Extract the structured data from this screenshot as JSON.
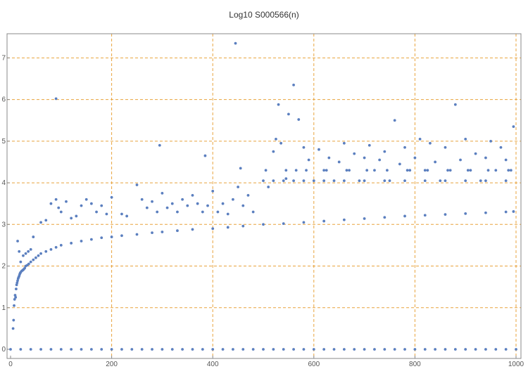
{
  "chart_data": {
    "type": "scatter",
    "title": "Log10 S000566(n)",
    "xlabel": "",
    "ylabel": "",
    "xlim": [
      0,
      1000
    ],
    "ylim": [
      -0.1,
      7.5
    ],
    "x_ticks": [
      0,
      200,
      400,
      600,
      800,
      1000
    ],
    "y_ticks": [
      0,
      1,
      2,
      3,
      4,
      5,
      6,
      7
    ],
    "grid_x": [
      200,
      400,
      600,
      800,
      1000
    ],
    "grid_y": [
      1,
      2,
      3,
      4,
      5,
      6,
      7
    ],
    "grid": true,
    "legend": "none",
    "colors": {
      "points": "#5b7fbf",
      "grid": "#e8a33d",
      "axis": "#888888"
    },
    "series": [
      {
        "values_description_free": true,
        "points": [
          [
            5,
            0.5
          ],
          [
            6,
            0.7
          ],
          [
            7,
            1.05
          ],
          [
            8,
            1.2
          ],
          [
            9,
            1.3
          ],
          [
            10,
            1.25
          ],
          [
            11,
            1.45
          ],
          [
            12,
            1.55
          ],
          [
            13,
            1.6
          ],
          [
            14,
            1.65
          ],
          [
            15,
            1.7
          ],
          [
            16,
            1.73
          ],
          [
            17,
            1.76
          ],
          [
            18,
            1.8
          ],
          [
            19,
            1.83
          ],
          [
            20,
            1.85
          ],
          [
            22,
            1.88
          ],
          [
            24,
            1.9
          ],
          [
            26,
            1.92
          ],
          [
            28,
            1.95
          ],
          [
            30,
            2.0
          ],
          [
            33,
            2.02
          ],
          [
            36,
            2.05
          ],
          [
            40,
            2.1
          ],
          [
            45,
            2.15
          ],
          [
            50,
            2.2
          ],
          [
            55,
            2.25
          ],
          [
            60,
            2.3
          ],
          [
            70,
            2.35
          ],
          [
            80,
            2.4
          ],
          [
            90,
            2.45
          ],
          [
            100,
            2.5
          ],
          [
            120,
            2.55
          ],
          [
            140,
            2.6
          ],
          [
            160,
            2.64
          ],
          [
            180,
            2.68
          ],
          [
            200,
            2.7
          ],
          [
            220,
            2.73
          ],
          [
            250,
            2.76
          ],
          [
            280,
            2.8
          ],
          [
            300,
            2.82
          ],
          [
            330,
            2.85
          ],
          [
            360,
            2.88
          ],
          [
            400,
            2.9
          ],
          [
            430,
            2.93
          ],
          [
            460,
            2.96
          ],
          [
            500,
            3.0
          ],
          [
            540,
            3.02
          ],
          [
            580,
            3.05
          ],
          [
            620,
            3.08
          ],
          [
            660,
            3.11
          ],
          [
            700,
            3.14
          ],
          [
            740,
            3.17
          ],
          [
            780,
            3.2
          ],
          [
            820,
            3.22
          ],
          [
            860,
            3.24
          ],
          [
            900,
            3.26
          ],
          [
            940,
            3.28
          ],
          [
            980,
            3.3
          ],
          [
            995,
            3.31
          ],
          [
            14,
            2.6
          ],
          [
            17,
            2.35
          ],
          [
            20,
            2.1
          ],
          [
            25,
            2.25
          ],
          [
            30,
            2.3
          ],
          [
            35,
            2.35
          ],
          [
            40,
            2.4
          ],
          [
            45,
            2.7
          ],
          [
            60,
            3.05
          ],
          [
            70,
            3.1
          ],
          [
            80,
            3.5
          ],
          [
            90,
            3.6
          ],
          [
            95,
            3.4
          ],
          [
            100,
            3.3
          ],
          [
            110,
            3.55
          ],
          [
            120,
            3.15
          ],
          [
            130,
            3.2
          ],
          [
            140,
            3.45
          ],
          [
            150,
            3.6
          ],
          [
            160,
            3.5
          ],
          [
            170,
            3.3
          ],
          [
            180,
            3.45
          ],
          [
            190,
            3.25
          ],
          [
            200,
            3.65
          ],
          [
            220,
            3.25
          ],
          [
            230,
            3.2
          ],
          [
            250,
            3.95
          ],
          [
            260,
            3.6
          ],
          [
            270,
            3.4
          ],
          [
            280,
            3.55
          ],
          [
            290,
            3.3
          ],
          [
            300,
            3.75
          ],
          [
            310,
            3.4
          ],
          [
            320,
            3.5
          ],
          [
            330,
            3.3
          ],
          [
            340,
            3.6
          ],
          [
            350,
            3.45
          ],
          [
            360,
            3.7
          ],
          [
            370,
            3.5
          ],
          [
            380,
            3.3
          ],
          [
            390,
            3.45
          ],
          [
            400,
            3.8
          ],
          [
            410,
            3.3
          ],
          [
            420,
            3.5
          ],
          [
            430,
            3.25
          ],
          [
            440,
            3.6
          ],
          [
            450,
            3.9
          ],
          [
            460,
            3.45
          ],
          [
            470,
            3.7
          ],
          [
            480,
            3.3
          ],
          [
            90,
            6.02
          ],
          [
            295,
            4.9
          ],
          [
            385,
            4.65
          ],
          [
            445,
            7.35
          ],
          [
            455,
            4.35
          ],
          [
            510,
            3.9
          ],
          [
            520,
            4.75
          ],
          [
            525,
            5.05
          ],
          [
            530,
            5.88
          ],
          [
            535,
            4.95
          ],
          [
            545,
            4.1
          ],
          [
            550,
            5.65
          ],
          [
            560,
            6.35
          ],
          [
            565,
            4.3
          ],
          [
            570,
            5.52
          ],
          [
            580,
            4.85
          ],
          [
            590,
            4.55
          ],
          [
            600,
            4.05
          ],
          [
            610,
            4.8
          ],
          [
            620,
            4.3
          ],
          [
            630,
            4.6
          ],
          [
            640,
            4.05
          ],
          [
            650,
            4.5
          ],
          [
            660,
            4.95
          ],
          [
            670,
            4.3
          ],
          [
            680,
            4.7
          ],
          [
            690,
            4.05
          ],
          [
            700,
            4.6
          ],
          [
            710,
            4.9
          ],
          [
            720,
            4.3
          ],
          [
            730,
            4.55
          ],
          [
            740,
            4.75
          ],
          [
            750,
            4.05
          ],
          [
            760,
            5.5
          ],
          [
            770,
            4.45
          ],
          [
            780,
            4.85
          ],
          [
            790,
            4.3
          ],
          [
            800,
            4.6
          ],
          [
            810,
            5.05
          ],
          [
            820,
            4.3
          ],
          [
            830,
            4.95
          ],
          [
            840,
            4.5
          ],
          [
            850,
            4.05
          ],
          [
            860,
            4.85
          ],
          [
            870,
            4.3
          ],
          [
            880,
            5.88
          ],
          [
            890,
            4.55
          ],
          [
            900,
            5.05
          ],
          [
            910,
            4.3
          ],
          [
            920,
            4.7
          ],
          [
            930,
            4.05
          ],
          [
            940,
            4.6
          ],
          [
            950,
            5.0
          ],
          [
            960,
            4.3
          ],
          [
            970,
            4.85
          ],
          [
            980,
            4.55
          ],
          [
            990,
            4.3
          ],
          [
            995,
            5.35
          ],
          [
            500,
            4.05
          ],
          [
            520,
            4.05
          ],
          [
            540,
            4.05
          ],
          [
            560,
            4.05
          ],
          [
            580,
            4.05
          ],
          [
            620,
            4.05
          ],
          [
            660,
            4.05
          ],
          [
            700,
            4.05
          ],
          [
            740,
            4.05
          ],
          [
            780,
            4.05
          ],
          [
            820,
            4.05
          ],
          [
            860,
            4.05
          ],
          [
            900,
            4.05
          ],
          [
            940,
            4.05
          ],
          [
            980,
            4.05
          ],
          [
            505,
            4.3
          ],
          [
            545,
            4.3
          ],
          [
            585,
            4.3
          ],
          [
            625,
            4.3
          ],
          [
            665,
            4.3
          ],
          [
            705,
            4.3
          ],
          [
            745,
            4.3
          ],
          [
            785,
            4.3
          ],
          [
            825,
            4.3
          ],
          [
            865,
            4.3
          ],
          [
            905,
            4.3
          ],
          [
            945,
            4.3
          ],
          [
            985,
            4.3
          ],
          [
            0,
            0
          ],
          [
            20,
            0
          ],
          [
            40,
            0
          ],
          [
            60,
            0
          ],
          [
            80,
            0
          ],
          [
            100,
            0
          ],
          [
            120,
            0
          ],
          [
            140,
            0
          ],
          [
            160,
            0
          ],
          [
            180,
            0
          ],
          [
            200,
            0
          ],
          [
            220,
            0
          ],
          [
            240,
            0
          ],
          [
            260,
            0
          ],
          [
            280,
            0
          ],
          [
            300,
            0
          ],
          [
            320,
            0
          ],
          [
            340,
            0
          ],
          [
            360,
            0
          ],
          [
            380,
            0
          ],
          [
            400,
            0
          ],
          [
            420,
            0
          ],
          [
            440,
            0
          ],
          [
            460,
            0
          ],
          [
            480,
            0
          ],
          [
            500,
            0
          ],
          [
            520,
            0
          ],
          [
            540,
            0
          ],
          [
            560,
            0
          ],
          [
            580,
            0
          ],
          [
            600,
            0
          ],
          [
            620,
            0
          ],
          [
            640,
            0
          ],
          [
            660,
            0
          ],
          [
            680,
            0
          ],
          [
            700,
            0
          ],
          [
            720,
            0
          ],
          [
            740,
            0
          ],
          [
            760,
            0
          ],
          [
            780,
            0
          ],
          [
            800,
            0
          ],
          [
            820,
            0
          ],
          [
            840,
            0
          ],
          [
            860,
            0
          ],
          [
            880,
            0
          ],
          [
            900,
            0
          ],
          [
            920,
            0
          ],
          [
            940,
            0
          ],
          [
            960,
            0
          ],
          [
            980,
            0
          ],
          [
            1000,
            0
          ]
        ]
      }
    ]
  }
}
